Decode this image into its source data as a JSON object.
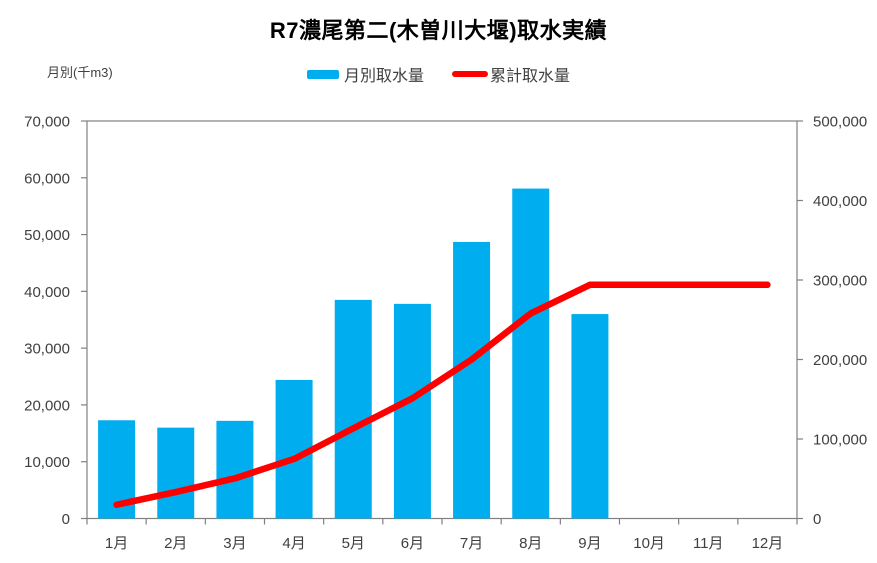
{
  "title": "R7濃尾第二(木曽川大堰)取水実績",
  "unit_label": "月別(千m3)",
  "legend": {
    "bar_label": "月別取水量",
    "line_label": "累計取水量"
  },
  "colors": {
    "bar": "#00AEEF",
    "line": "#FF0000",
    "axis": "#808080",
    "tick_text": "#404040"
  },
  "chart_data": {
    "type": "bar",
    "title": "R7濃尾第二(木曽川大堰)取水実績",
    "categories": [
      "1月",
      "2月",
      "3月",
      "4月",
      "5月",
      "6月",
      "7月",
      "8月",
      "9月",
      "10月",
      "11月",
      "12月"
    ],
    "series": [
      {
        "name": "月別取水量",
        "type": "bar",
        "axis": "left",
        "values": [
          17300,
          16000,
          17200,
          24400,
          38500,
          37800,
          48700,
          58100,
          36000,
          null,
          null,
          null
        ]
      },
      {
        "name": "累計取水量",
        "type": "line",
        "axis": "right",
        "values": [
          17300,
          33300,
          50500,
          74900,
          113400,
          151200,
          199900,
          258000,
          294000,
          294000,
          294000,
          294000
        ]
      }
    ],
    "left_axis": {
      "label": "月別(千m3)",
      "min": 0,
      "max": 70000,
      "step": 10000,
      "tick_labels": [
        "0",
        "10,000",
        "20,000",
        "30,000",
        "40,000",
        "50,000",
        "60,000",
        "70,000"
      ]
    },
    "right_axis": {
      "min": 0,
      "max": 500000,
      "step": 100000,
      "tick_labels": [
        "0",
        "100,000",
        "200,000",
        "300,000",
        "400,000",
        "500,000"
      ]
    },
    "grid": false,
    "legend_position": "top"
  }
}
